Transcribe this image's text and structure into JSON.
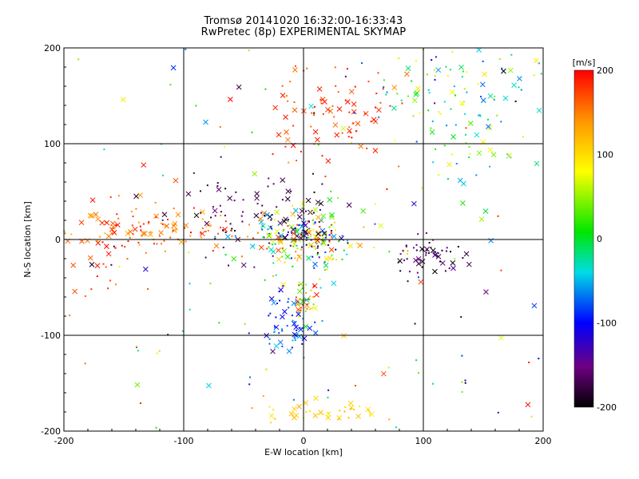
{
  "chart_data": {
    "type": "scatter",
    "title": "Tromsø 20141020 16:32:00-16:33:43",
    "subtitle": "RwPretec (8p) EXPERIMENTAL SKYMAP",
    "xlabel": "E-W location [km]",
    "ylabel": "N-S location [km]",
    "xlim": [
      -200,
      200
    ],
    "ylim": [
      -200,
      200
    ],
    "x_ticks": [
      -200,
      -100,
      0,
      100,
      200
    ],
    "y_ticks": [
      -200,
      -100,
      0,
      100,
      200
    ],
    "grid_lines": [
      -100,
      0,
      100
    ],
    "grid": true,
    "markers": [
      "x",
      "dot"
    ],
    "colorbar": {
      "label": "[m/s]",
      "range": [
        -200,
        200
      ],
      "ticks": [
        200,
        100,
        0,
        -100,
        -200
      ],
      "colormap": "rainbow: black → purple → blue → cyan → green → yellow → orange → red"
    },
    "clusters": [
      {
        "center": [
          0,
          0
        ],
        "spread": [
          25,
          15
        ],
        "count": 220,
        "velocity_range": [
          -200,
          200
        ]
      },
      {
        "center": [
          100,
          -20
        ],
        "spread": [
          15,
          10
        ],
        "count": 55,
        "velocity_range": [
          -200,
          -140
        ]
      },
      {
        "center": [
          -120,
          10
        ],
        "spread": [
          45,
          12
        ],
        "count": 110,
        "velocity_range": [
          120,
          200
        ]
      },
      {
        "center": [
          -10,
          -90
        ],
        "spread": [
          10,
          15
        ],
        "count": 60,
        "velocity_range": [
          -110,
          -40
        ]
      },
      {
        "center": [
          0,
          -60
        ],
        "spread": [
          6,
          12
        ],
        "count": 40,
        "velocity_range": [
          0,
          200
        ]
      },
      {
        "center": [
          20,
          130
        ],
        "spread": [
          35,
          25
        ],
        "count": 90,
        "velocity_range": [
          150,
          200
        ]
      },
      {
        "center": [
          130,
          140
        ],
        "spread": [
          35,
          35
        ],
        "count": 120,
        "velocity_range": [
          -80,
          100
        ]
      },
      {
        "center": [
          -40,
          30
        ],
        "spread": [
          35,
          20
        ],
        "count": 70,
        "velocity_range": [
          -200,
          -150
        ]
      },
      {
        "center": [
          20,
          -180
        ],
        "spread": [
          25,
          6
        ],
        "count": 40,
        "velocity_range": [
          90,
          130
        ]
      },
      {
        "center": [
          -170,
          -10
        ],
        "spread": [
          20,
          30
        ],
        "count": 30,
        "velocity_range": [
          150,
          200
        ]
      },
      {
        "center": [
          0,
          0
        ],
        "spread": [
          200,
          200
        ],
        "count": 140,
        "velocity_range": [
          -200,
          200
        ]
      }
    ]
  }
}
